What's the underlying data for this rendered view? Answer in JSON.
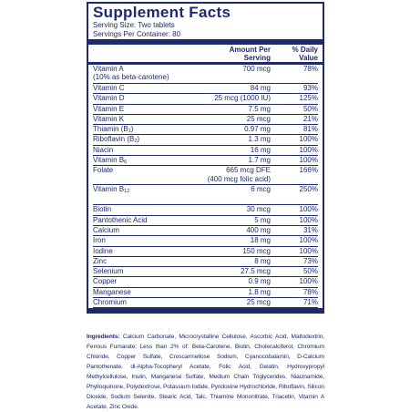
{
  "title": "Supplement Facts",
  "serving_size": "Serving Size: Two tablets",
  "servings_per_container": "Servings Per Container: 80",
  "header": {
    "amount_line1": "Amount Per",
    "amount_line2": "Serving",
    "dv_line1": "% Daily",
    "dv_line2": "Value"
  },
  "rows": [
    {
      "name": "Vitamin A",
      "name2": "(10% as beta-carotene)",
      "amount": "700 mcg",
      "dv": "78%"
    },
    {
      "name": "Vitamin C",
      "amount": "84 mg",
      "dv": "93%"
    },
    {
      "name": "Vitamin D",
      "amount": "25 mcg (1000 IU)",
      "dv": "125%"
    },
    {
      "name": "Vitamin E",
      "amount": "7.5 mg",
      "dv": "50%"
    },
    {
      "name": "Vitamin K",
      "amount": "25 mcg",
      "dv": "21%"
    },
    {
      "name": "Thiamin (B",
      "sub": "1",
      "name_end": ")",
      "amount": "0.97 mg",
      "dv": "81%"
    },
    {
      "name": "Riboflavin (B",
      "sub": "2",
      "name_end": ")",
      "amount": "1.3 mg",
      "dv": "100%"
    },
    {
      "name": "Niacin",
      "amount": "16 mg",
      "dv": "100%"
    },
    {
      "name": "Vitamin B",
      "sub": "6",
      "amount": "1.7 mg",
      "dv": "100%"
    },
    {
      "name": "Folate",
      "amount": "665 mcg DFE",
      "amount2": "(400 mcg folic acid)",
      "dv": "166%"
    },
    {
      "name": "Vitamin B",
      "sub": "12",
      "amount": "6 mcg",
      "dv": "250%"
    },
    {
      "name": "Biotin",
      "amount": "30 mcg",
      "dv": "100%"
    },
    {
      "name": "Pantothenic Acid",
      "amount": "5 mg",
      "dv": "100%"
    },
    {
      "name": "Calcium",
      "amount": "400 mg",
      "dv": "31%"
    },
    {
      "name": "Iron",
      "amount": "18 mg",
      "dv": "100%"
    },
    {
      "name": "Iodine",
      "amount": "150 mcg",
      "dv": "100%"
    },
    {
      "name": "Zinc",
      "amount": "8 mg",
      "dv": "73%"
    },
    {
      "name": "Selenium",
      "amount": "27.5 mcg",
      "dv": "50%"
    },
    {
      "name": "Copper",
      "amount": "0.9 mg",
      "dv": "100%"
    },
    {
      "name": "Manganese",
      "amount": "1.8 mg",
      "dv": "78%"
    },
    {
      "name": "Chromium",
      "amount": "25 mcg",
      "dv": "71%"
    }
  ],
  "ingredients_label": "Ingredients:",
  "ingredients_text": "Calcium Carbonate, Microcrystalline Cellulose, Ascorbic Acid, Maltodextrin, Ferrous Fumarate; Less than 2% of: Beta-Carotene, Biotin, Cholecalciferol, Chromium Chloride, Copper Sulfate, Croscarmellose Sodium, Cyanocobalamin, D-Calcium Pantothenate, dl-Alpha-Tocopheryl Acetate, Folic Acid, Gelatin, Hydroxypropyl Methylcellulose, Inulin, Manganese Sulfate, Medium Chain Triglycerides, Niacinamide, Phylloquinone, Polydextrose, Potassium Iodide, Pyridoxine Hydrochloride, Riboflavin, Silicon Dioxide, Sodium Selenite, Stearic Acid, Talc, Thiamine Mononitrate, Triacetin, Vitamin A Acetate, Zinc Oxide."
}
